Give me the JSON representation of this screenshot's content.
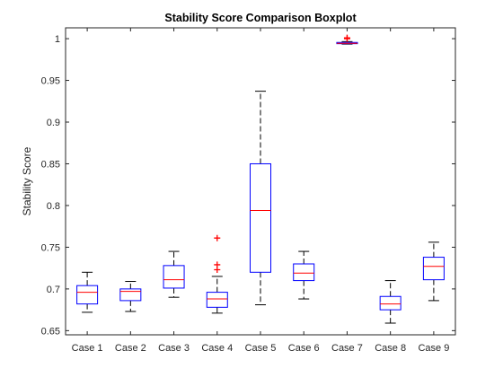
{
  "chart_data": {
    "type": "boxplot",
    "title": "Stability Score Comparison Boxplot",
    "xlabel": "",
    "ylabel": "Stability Score",
    "ylim": [
      0.645,
      1.013
    ],
    "yticks": [
      0.65,
      0.7,
      0.75,
      0.8,
      0.85,
      0.9,
      0.95,
      1
    ],
    "ytick_labels": [
      "0.65",
      "0.7",
      "0.75",
      "0.8",
      "0.85",
      "0.9",
      "0.95",
      "1"
    ],
    "grid": false,
    "colors": {
      "box": "#0000ff",
      "median": "#ff0000",
      "whisker": "#000000",
      "outlier": "#ff0000",
      "axis": "#262626"
    },
    "categories": [
      "Case 1",
      "Case 2",
      "Case 3",
      "Case 4",
      "Case 5",
      "Case 6",
      "Case 7",
      "Case 8",
      "Case 9"
    ],
    "boxes": [
      {
        "whisker_low": 0.672,
        "q1": 0.682,
        "median": 0.696,
        "q3": 0.704,
        "whisker_high": 0.72,
        "outliers": []
      },
      {
        "whisker_low": 0.673,
        "q1": 0.686,
        "median": 0.697,
        "q3": 0.7,
        "whisker_high": 0.709,
        "outliers": []
      },
      {
        "whisker_low": 0.69,
        "q1": 0.701,
        "median": 0.711,
        "q3": 0.728,
        "whisker_high": 0.745,
        "outliers": []
      },
      {
        "whisker_low": 0.671,
        "q1": 0.678,
        "median": 0.688,
        "q3": 0.696,
        "whisker_high": 0.715,
        "outliers": [
          0.723,
          0.729,
          0.761
        ]
      },
      {
        "whisker_low": 0.681,
        "q1": 0.72,
        "median": 0.794,
        "q3": 0.85,
        "whisker_high": 0.937,
        "outliers": []
      },
      {
        "whisker_low": 0.688,
        "q1": 0.71,
        "median": 0.719,
        "q3": 0.73,
        "whisker_high": 0.745,
        "outliers": []
      },
      {
        "whisker_low": 0.9935,
        "q1": 0.994,
        "median": 0.9945,
        "q3": 0.9955,
        "whisker_high": 0.9965,
        "outliers": [
          1.0,
          1.001
        ]
      },
      {
        "whisker_low": 0.659,
        "q1": 0.675,
        "median": 0.682,
        "q3": 0.691,
        "whisker_high": 0.71,
        "outliers": []
      },
      {
        "whisker_low": 0.686,
        "q1": 0.711,
        "median": 0.727,
        "q3": 0.738,
        "whisker_high": 0.756,
        "outliers": []
      }
    ]
  }
}
